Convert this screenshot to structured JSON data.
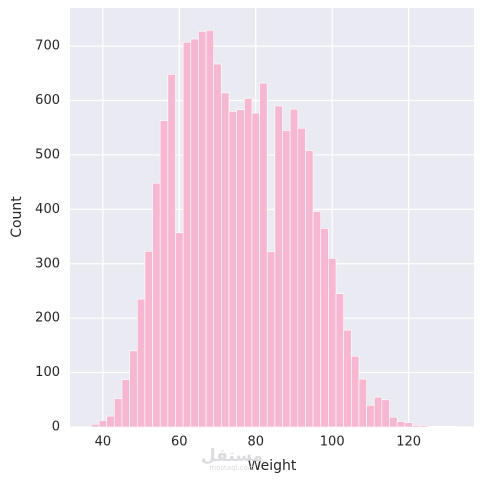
{
  "chart_data": {
    "type": "histogram",
    "xlabel": "Weight",
    "ylabel": "Count",
    "bins": [
      37,
      39,
      41,
      43,
      45,
      47,
      49,
      51,
      53,
      55,
      57,
      59,
      61,
      63,
      65,
      67,
      69,
      71,
      73,
      75,
      77,
      79,
      81,
      83,
      85,
      87,
      89,
      91,
      93,
      95,
      97,
      99,
      101,
      103,
      105,
      107,
      109,
      111,
      113,
      115,
      117,
      119,
      121,
      123,
      125,
      127,
      129,
      131,
      133
    ],
    "counts": [
      5,
      12,
      20,
      52,
      87,
      140,
      235,
      323,
      448,
      563,
      648,
      357,
      707,
      713,
      727,
      729,
      667,
      614,
      580,
      583,
      604,
      577,
      632,
      322,
      590,
      545,
      584,
      549,
      508,
      396,
      365,
      310,
      245,
      178,
      130,
      88,
      40,
      55,
      50,
      18,
      10,
      8,
      3,
      3,
      1,
      1,
      1,
      1
    ],
    "color": "#f6b8d0",
    "xlim": [
      31.4,
      137.1
    ],
    "xticks": [
      40,
      60,
      80,
      100,
      120
    ],
    "ylim": [
      0,
      770
    ],
    "yticks": [
      0,
      100,
      200,
      300,
      400,
      500,
      600,
      700
    ],
    "grid": true,
    "background": "#eaeaf2",
    "watermark": "مستقل",
    "watermark_sub": "mostaql.com"
  }
}
